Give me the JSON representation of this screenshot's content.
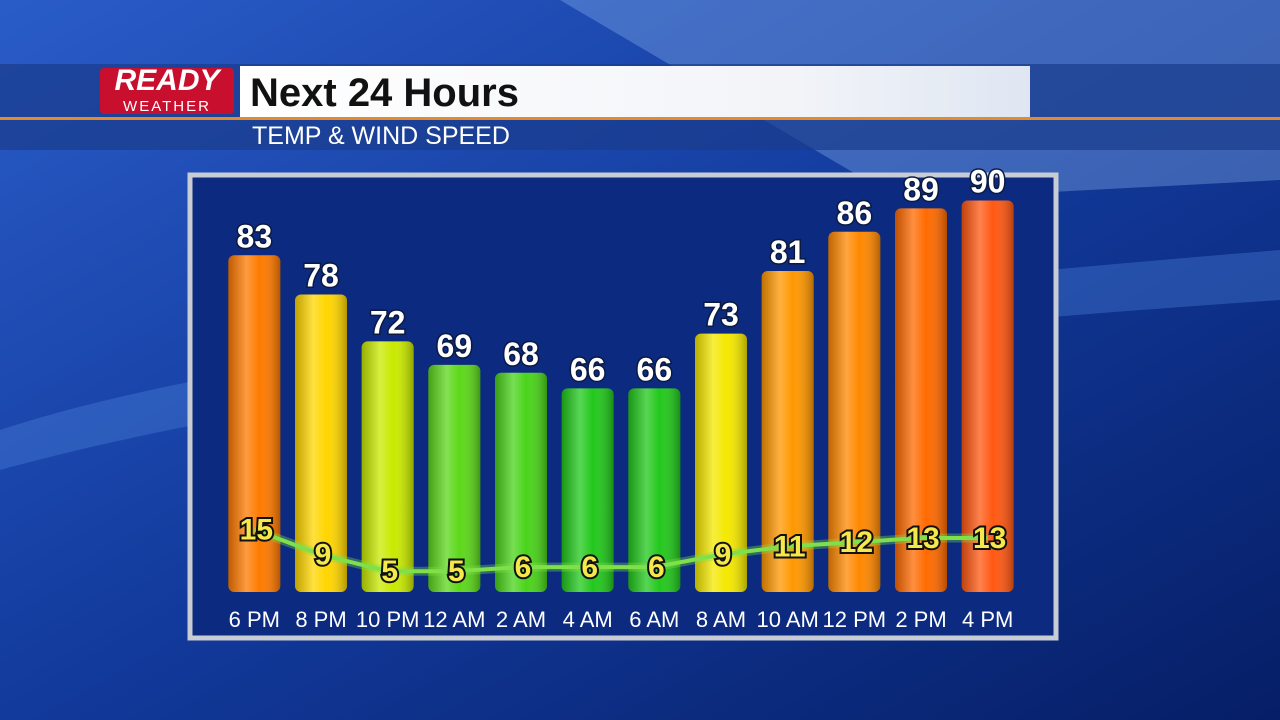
{
  "branding": {
    "line1": "READY",
    "line2": "WEATHER"
  },
  "chart_data": {
    "type": "bar",
    "title": "Next 24 Hours",
    "subtitle": "TEMP & WIND SPEED",
    "categories": [
      "6 PM",
      "8 PM",
      "10 PM",
      "12 AM",
      "2 AM",
      "4 AM",
      "6 AM",
      "8 AM",
      "10 AM",
      "12 PM",
      "2 PM",
      "4 PM"
    ],
    "series": [
      {
        "values": [
          83,
          78,
          72,
          69,
          68,
          66,
          66,
          73,
          81,
          86,
          89,
          90
        ],
        "colors": [
          "#ff7a00",
          "#ffd600",
          "#c9ea00",
          "#5cd81a",
          "#4ad41a",
          "#22c81c",
          "#22c81c",
          "#f4e800",
          "#ff9800",
          "#ff8800",
          "#ff6a00",
          "#ff5812"
        ]
      },
      {
        "type": "line",
        "axis": "y2",
        "color": "#7fe04a",
        "values": [
          15,
          9,
          5,
          5,
          6,
          6,
          6,
          9,
          11,
          12,
          13,
          13
        ]
      }
    ],
    "ylim": [
      40,
      93
    ],
    "y2lim": [
      0,
      100
    ]
  }
}
